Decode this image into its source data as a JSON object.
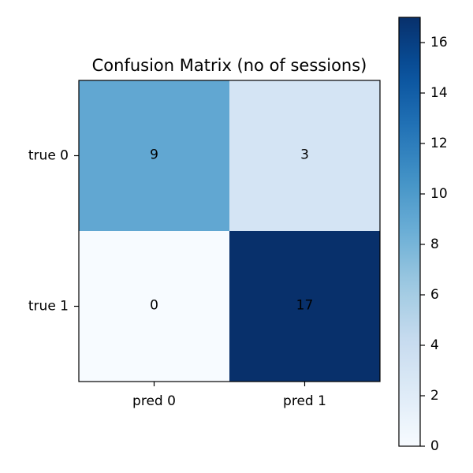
{
  "chart_data": {
    "type": "heatmap",
    "title": "Confusion Matrix (no of sessions)",
    "x_categories": [
      "pred 0",
      "pred 1"
    ],
    "y_categories": [
      "true 0",
      "true 1"
    ],
    "values": [
      [
        9,
        3
      ],
      [
        0,
        17
      ]
    ],
    "colormap": "Blues",
    "colorbar": {
      "min": 0,
      "max": 17,
      "ticks": [
        0,
        2,
        4,
        6,
        8,
        10,
        12,
        14,
        16
      ]
    },
    "colors": {
      "low": "#f7fbff",
      "high": "#08306b"
    }
  }
}
